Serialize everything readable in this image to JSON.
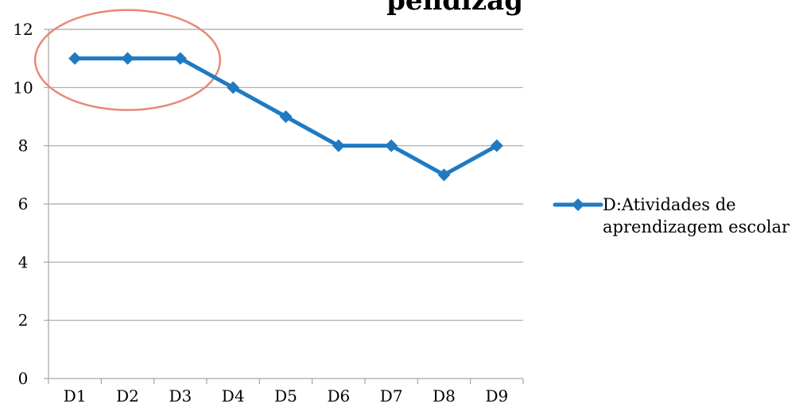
{
  "chart_data": {
    "type": "line",
    "title_visible_fragment": "pendizag",
    "categories": [
      "D1",
      "D2",
      "D3",
      "D4",
      "D5",
      "D6",
      "D7",
      "D8",
      "D9"
    ],
    "series": [
      {
        "name": "D:Atividades de aprendizagem escolar",
        "values": [
          11,
          11,
          11,
          10,
          9,
          8,
          8,
          7,
          8
        ],
        "color": "#1f7ac2"
      }
    ],
    "xlabel": "",
    "ylabel": "",
    "ylim": [
      0,
      12
    ],
    "yticks": [
      0,
      2,
      4,
      6,
      8,
      10,
      12
    ],
    "grid": true,
    "legend_position": "right",
    "legend_lines": [
      "D:Atividades de",
      "aprendizagem escolar"
    ],
    "annotation": {
      "type": "ellipse",
      "color": "#e8887a",
      "encloses_categories": [
        "D1",
        "D2",
        "D3"
      ]
    }
  }
}
